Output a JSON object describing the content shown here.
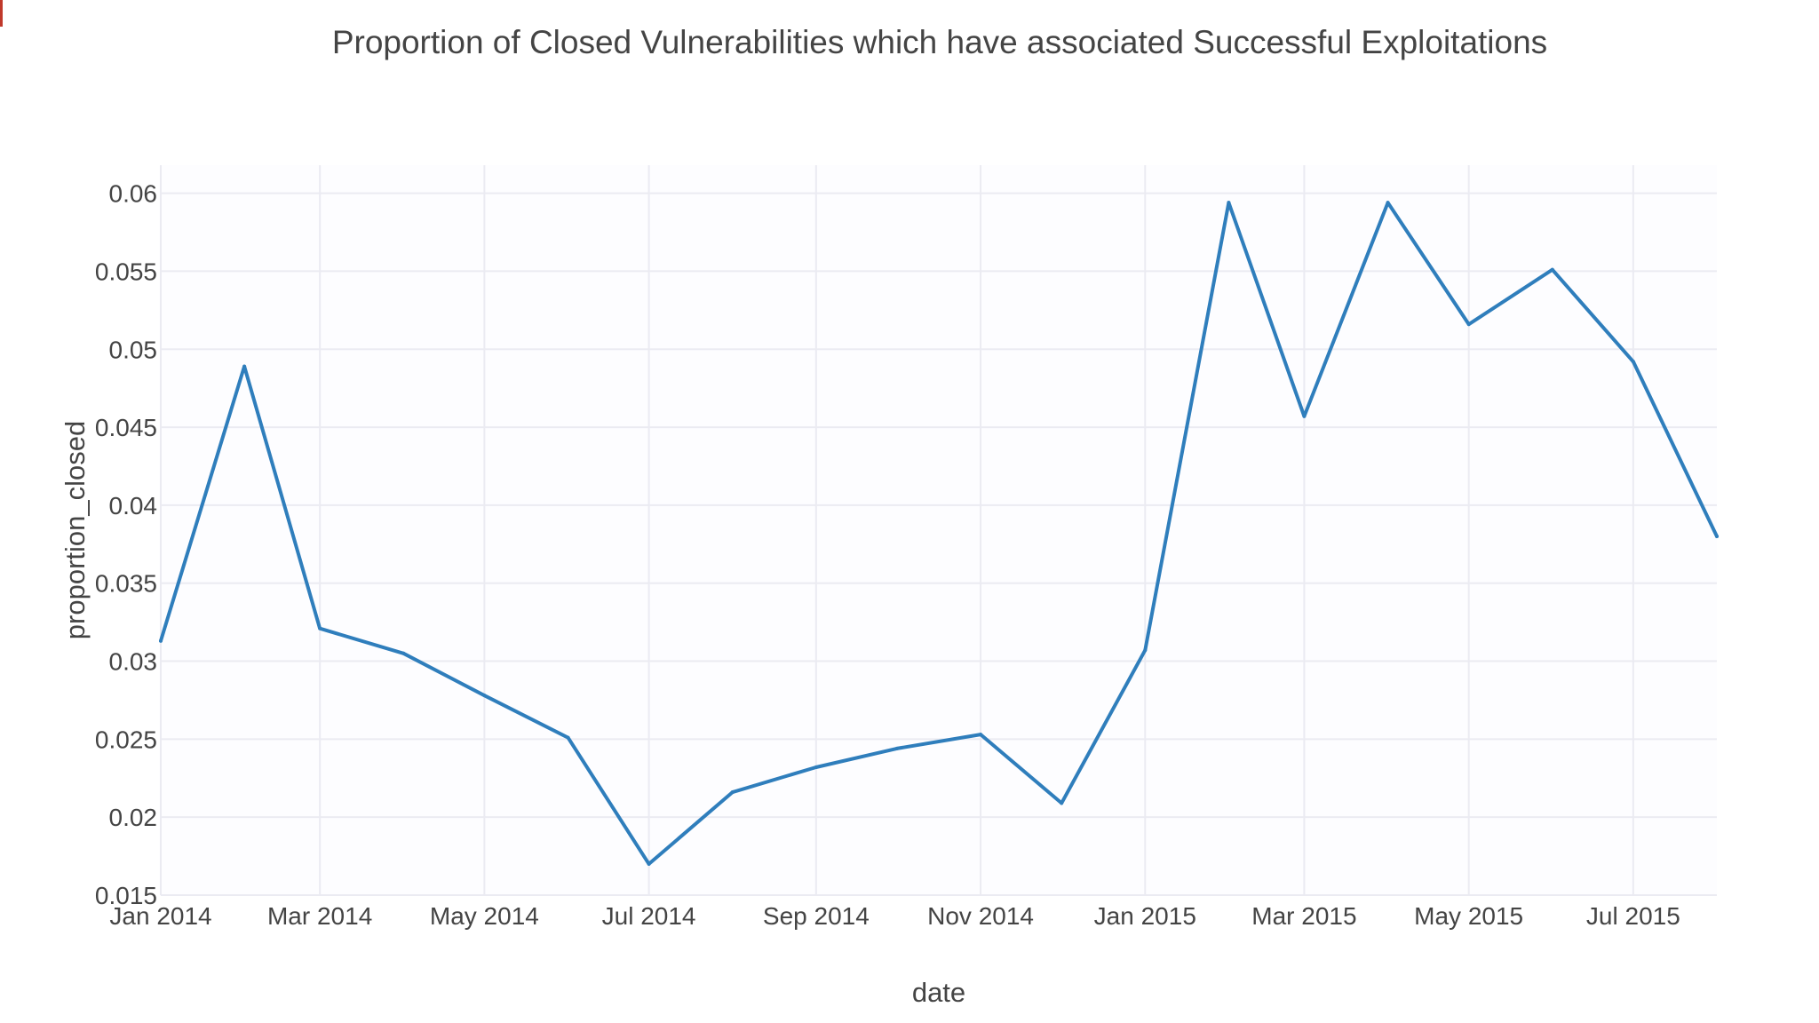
{
  "chart_data": {
    "type": "line",
    "title": "Proportion of Closed Vulnerabilities which have associated Successful Exploitations",
    "xlabel": "date",
    "ylabel": "proportion_closed",
    "x_tick_labels": [
      "Jan 2014",
      "Mar 2014",
      "May 2014",
      "Jul 2014",
      "Sep 2014",
      "Nov 2014",
      "Jan 2015",
      "Mar 2015",
      "May 2015",
      "Jul 2015"
    ],
    "y_tick_labels": [
      "0.015",
      "0.02",
      "0.025",
      "0.03",
      "0.035",
      "0.04",
      "0.045",
      "0.05",
      "0.055",
      "0.06"
    ],
    "y_ticks": [
      0.015,
      0.02,
      0.025,
      0.03,
      0.035,
      0.04,
      0.045,
      0.05,
      0.055,
      0.06
    ],
    "x_ticks": [
      "2014-01-01",
      "2014-03-01",
      "2014-05-01",
      "2014-07-01",
      "2014-09-01",
      "2014-11-01",
      "2015-01-01",
      "2015-03-01",
      "2015-05-01",
      "2015-07-01"
    ],
    "xlim": [
      "2014-01-01",
      "2015-08-01"
    ],
    "ylim": [
      0.015,
      0.0618
    ],
    "grid": true,
    "colors": {
      "line": "#2f7ebc",
      "grid": "#ebebf2",
      "plot_bg": "#fdfdff",
      "text": "#444444"
    },
    "series": [
      {
        "x": [
          "2014-01-01",
          "2014-02-01",
          "2014-03-01",
          "2014-04-01",
          "2014-05-01",
          "2014-06-01",
          "2014-07-01",
          "2014-08-01",
          "2014-09-01",
          "2014-10-01",
          "2014-11-01",
          "2014-12-01",
          "2015-01-01",
          "2015-02-01",
          "2015-03-01",
          "2015-04-01",
          "2015-05-01",
          "2015-06-01",
          "2015-07-01",
          "2015-08-01"
        ],
        "values": [
          0.0313,
          0.0489,
          0.0321,
          0.0305,
          0.0278,
          0.0251,
          0.017,
          0.0216,
          0.0232,
          0.0244,
          0.0253,
          0.0209,
          0.0307,
          0.0594,
          0.0457,
          0.0594,
          0.0516,
          0.0551,
          0.0492,
          0.038
        ]
      }
    ]
  }
}
